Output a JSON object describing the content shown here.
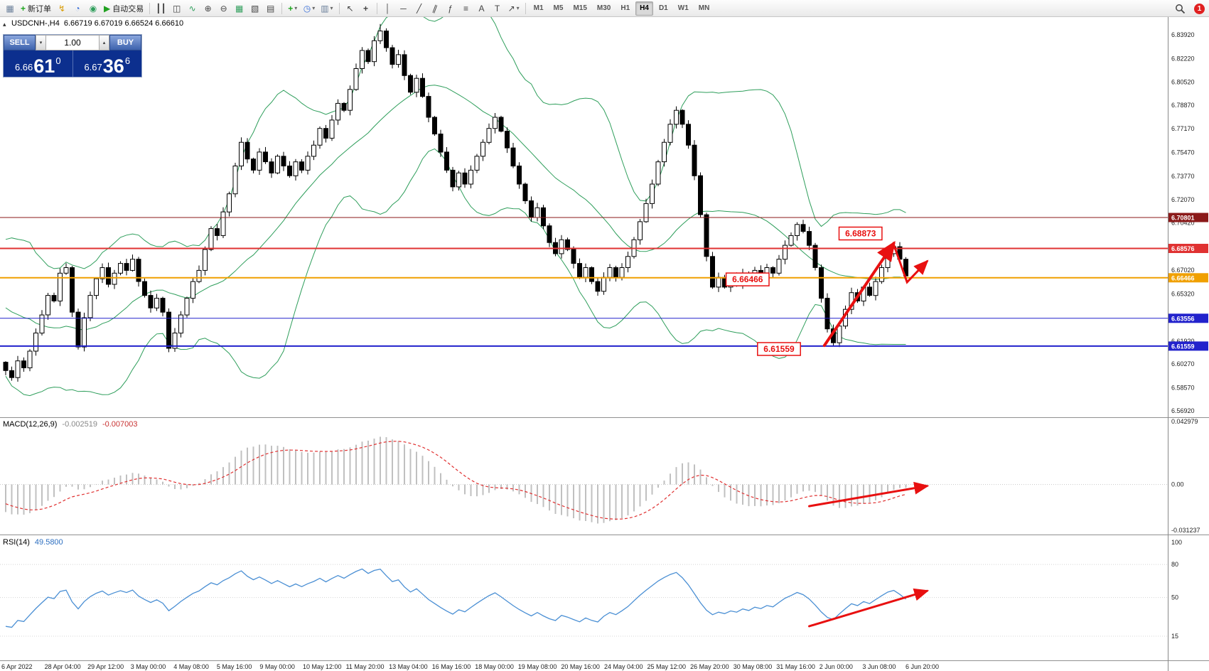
{
  "toolbar": {
    "groups": [
      {
        "items": [
          {
            "name": "chart-window-icon",
            "glyph": "▦",
            "color": "#6a7f9a"
          },
          {
            "name": "new-order-button",
            "glyph": "+",
            "color": "#1ea51e",
            "bold": true,
            "label": "新订单"
          },
          {
            "name": "market-watch-icon",
            "glyph": "↯",
            "color": "#d89a00"
          },
          {
            "name": "data-window-icon",
            "glyph": "◔",
            "color": "#3a6fd8"
          },
          {
            "name": "terminal-icon",
            "glyph": "◉",
            "color": "#2e9e5b"
          },
          {
            "name": "auto-trading-button",
            "glyph": "▶",
            "color": "#21a121",
            "label": "自动交易"
          }
        ]
      },
      {
        "items": [
          {
            "name": "bar-chart-icon",
            "glyph": "┃┃"
          },
          {
            "name": "candlestick-chart-icon",
            "glyph": "◫"
          },
          {
            "name": "line-chart-icon",
            "glyph": "∿",
            "color": "#2e9e5b"
          },
          {
            "name": "zoom-in-icon",
            "glyph": "⊕"
          },
          {
            "name": "zoom-out-icon",
            "glyph": "⊖"
          },
          {
            "name": "tile-windows-icon",
            "glyph": "▦",
            "color": "#2e9e5b"
          },
          {
            "name": "cascade-windows-icon",
            "glyph": "▧"
          },
          {
            "name": "arrange-windows-icon",
            "glyph": "▤"
          }
        ]
      },
      {
        "items": [
          {
            "name": "new-chart-dropdown",
            "glyph": "+",
            "color": "#1ea51e",
            "bold": true,
            "caret": true
          },
          {
            "name": "period-dropdown",
            "glyph": "◷",
            "color": "#3a6fd8",
            "caret": true
          },
          {
            "name": "template-dropdown",
            "glyph": "▥",
            "color": "#6a7f9a",
            "caret": true
          }
        ]
      },
      {
        "items": [
          {
            "name": "cursor-icon",
            "glyph": "↖"
          },
          {
            "name": "crosshair-icon",
            "glyph": "+",
            "bold": true
          }
        ]
      },
      {
        "items": [
          {
            "name": "vertical-line-icon",
            "glyph": "│"
          },
          {
            "name": "horizontal-line-icon",
            "glyph": "─"
          },
          {
            "name": "trendline-icon",
            "glyph": "╱"
          },
          {
            "name": "channel-icon",
            "glyph": "∥",
            "rot": 20
          },
          {
            "name": "fibonacci-icon",
            "glyph": "ƒ"
          },
          {
            "name": "grid-icon",
            "glyph": "≡"
          },
          {
            "name": "text-icon",
            "glyph": "A"
          },
          {
            "name": "label-icon",
            "glyph": "T"
          },
          {
            "name": "shapes-dropdown",
            "glyph": "↗",
            "caret": true
          }
        ]
      },
      {
        "items": [
          {
            "name": "timeframe-m1",
            "kind": "tf",
            "label": "M1"
          },
          {
            "name": "timeframe-m5",
            "kind": "tf",
            "label": "M5"
          },
          {
            "name": "timeframe-m15",
            "kind": "tf",
            "label": "M15"
          },
          {
            "name": "timeframe-m30",
            "kind": "tf",
            "label": "M30"
          },
          {
            "name": "timeframe-h1",
            "kind": "tf",
            "label": "H1"
          },
          {
            "name": "timeframe-h4",
            "kind": "tf",
            "label": "H4",
            "active": true
          },
          {
            "name": "timeframe-d1",
            "kind": "tf",
            "label": "D1"
          },
          {
            "name": "timeframe-w1",
            "kind": "tf",
            "label": "W1"
          },
          {
            "name": "timeframe-mn",
            "kind": "tf",
            "label": "MN"
          }
        ]
      }
    ],
    "right_items": [
      {
        "name": "search-icon",
        "kind": "search"
      },
      {
        "name": "notifications-badge",
        "kind": "badge",
        "label": "1"
      }
    ]
  },
  "chart": {
    "collapse_arrow": "▴",
    "symbol_label": "USDCNH-,H4",
    "ohlc_label": "6.66719 6.67019 6.66524 6.66610",
    "trade_panel": {
      "sell_label": "SELL",
      "buy_label": "BUY",
      "volume": "1.00",
      "spin_down": "▾",
      "spin_up": "▴",
      "sell_prefix": "6.66",
      "sell_big": "61",
      "sell_sup": "0",
      "buy_prefix": "6.67",
      "buy_big": "36",
      "buy_sup": "6"
    },
    "macd_title": "MACD(12,26,9)",
    "macd_value_main": "-0.002519",
    "macd_value_signal": "-0.007003",
    "rsi_title": "RSI(14)",
    "rsi_value": "49.5800"
  },
  "chart_data": {
    "type": "candlestick",
    "symbol": "USDCNH-",
    "timeframe": "H4",
    "price_axis": {
      "max": 6.852,
      "min": 6.565,
      "labels": [
        "6.83920",
        "6.82220",
        "6.80520",
        "6.78870",
        "6.77170",
        "6.75470",
        "6.73770",
        "6.72070",
        "6.70420",
        "6.68720",
        "6.67020",
        "6.65320",
        "6.63620",
        "6.61920",
        "6.60270",
        "6.58570",
        "6.56920"
      ]
    },
    "first_open": 6.604,
    "warmup_closes": [
      6.683,
      6.67,
      6.676,
      6.66,
      6.666,
      6.65,
      6.656,
      6.641,
      6.648,
      6.632,
      6.64,
      6.624,
      6.63,
      6.612,
      6.604
    ],
    "closes": [
      6.598,
      6.593,
      6.605,
      6.6,
      6.612,
      6.625,
      6.638,
      6.652,
      6.648,
      6.668,
      6.672,
      6.64,
      6.615,
      6.636,
      6.652,
      6.664,
      6.672,
      6.66,
      6.668,
      6.675,
      6.67,
      6.678,
      6.662,
      6.652,
      6.643,
      6.65,
      6.64,
      6.614,
      6.625,
      6.638,
      6.65,
      6.662,
      6.67,
      6.685,
      6.7,
      6.695,
      6.712,
      6.725,
      6.745,
      6.762,
      6.75,
      6.742,
      6.755,
      6.748,
      6.74,
      6.752,
      6.745,
      6.738,
      6.748,
      6.742,
      6.752,
      6.76,
      6.772,
      6.765,
      6.778,
      6.79,
      6.785,
      6.8,
      6.815,
      6.828,
      6.82,
      6.835,
      6.842,
      6.83,
      6.818,
      6.825,
      6.81,
      6.798,
      6.808,
      6.795,
      6.78,
      6.768,
      6.755,
      6.742,
      6.73,
      6.74,
      6.732,
      6.742,
      6.752,
      6.762,
      6.772,
      6.78,
      6.77,
      6.758,
      6.745,
      6.732,
      6.72,
      6.708,
      6.715,
      6.702,
      6.69,
      6.682,
      6.692,
      6.685,
      6.675,
      6.665,
      6.672,
      6.662,
      6.655,
      6.665,
      6.672,
      6.665,
      6.672,
      6.68,
      6.692,
      6.705,
      6.718,
      6.732,
      6.748,
      6.762,
      6.775,
      6.785,
      6.775,
      6.76,
      6.738,
      6.71,
      6.68,
      6.658,
      6.665,
      6.658,
      6.665,
      6.66,
      6.668,
      6.662,
      6.67,
      6.665,
      6.672,
      6.668,
      6.678,
      6.688,
      6.695,
      6.703,
      6.698,
      6.688,
      6.672,
      6.65,
      6.628,
      6.618,
      6.63,
      6.642,
      6.654,
      6.648,
      6.658,
      6.652,
      6.662,
      6.672,
      6.682,
      6.687,
      6.678,
      6.666
    ],
    "key_points": {
      "high_idx": 62,
      "high": 6.847,
      "low_idx": 137,
      "low": 6.6156,
      "last_high_idx": 147,
      "last_high": 6.68873
    },
    "bollinger": {
      "period": 20,
      "deviation": 2,
      "color": "#2e9e5b"
    },
    "hlines": [
      {
        "price": 6.70801,
        "label": "6.70801",
        "color": "#8b1a1a",
        "width": 1
      },
      {
        "price": 6.68576,
        "label": "6.68576",
        "color": "#e03232",
        "width": 2
      },
      {
        "price": 6.66466,
        "label": "6.66466",
        "color": "#f0a000",
        "width": 2
      },
      {
        "price": 6.63556,
        "label": "6.63556",
        "color": "#2222cc",
        "width": 1
      },
      {
        "price": 6.61559,
        "label": "6.61559",
        "color": "#2222cc",
        "width": 2
      }
    ],
    "macd": {
      "params": [
        12,
        26,
        9
      ],
      "axis_labels": [
        "0.042979",
        "0.00",
        "-0.031237"
      ],
      "axis_values": [
        0.042979,
        0,
        -0.031237
      ],
      "histogram_color": "#c0c0c0",
      "signal_color": "#e03030"
    },
    "rsi": {
      "period": 14,
      "axis_labels": [
        [
          "100",
          100
        ],
        [
          "80",
          80
        ],
        [
          "50",
          50
        ],
        [
          "15",
          15
        ]
      ],
      "levels": [
        80,
        50,
        15
      ],
      "color": "#4a8fd4"
    },
    "time_labels": [
      "6 Apr 2022",
      "28 Apr 04:00",
      "29 Apr 12:00",
      "3 May 00:00",
      "4 May 08:00",
      "5 May 16:00",
      "9 May 00:00",
      "10 May 12:00",
      "11 May 20:00",
      "13 May 04:00",
      "16 May 16:00",
      "18 May 00:00",
      "19 May 08:00",
      "20 May 16:00",
      "24 May 04:00",
      "25 May 12:00",
      "26 May 20:00",
      "30 May 08:00",
      "31 May 16:00",
      "2 Jun 00:00",
      "3 Jun 08:00",
      "6 Jun 20:00"
    ],
    "annotations": {
      "color": "#e81010",
      "boxes": [
        {
          "text": "6.68873",
          "idx": 141.5,
          "price": 6.6965
        },
        {
          "text": "6.66466",
          "idx": 122.8,
          "price": 6.6635
        },
        {
          "text": "6.61559",
          "idx": 128,
          "price": 6.6135
        }
      ],
      "arrows": [
        {
          "panel": "price",
          "w": 4,
          "pts": [
            [
              135.5,
              6.616
            ],
            [
              147,
              6.6895
            ]
          ]
        },
        {
          "panel": "price",
          "w": 3,
          "pts": [
            [
              147,
              6.6885
            ],
            [
              149.2,
              6.6615
            ],
            [
              152.5,
              6.6765
            ]
          ]
        },
        {
          "panel": "macd",
          "w": 3,
          "pts": [
            [
              133,
              -0.0148
            ],
            [
              152.5,
              -0.001
            ]
          ]
        },
        {
          "panel": "rsi",
          "w": 3,
          "pts": [
            [
              133,
              24
            ],
            [
              152.5,
              56
            ]
          ]
        }
      ]
    }
  }
}
